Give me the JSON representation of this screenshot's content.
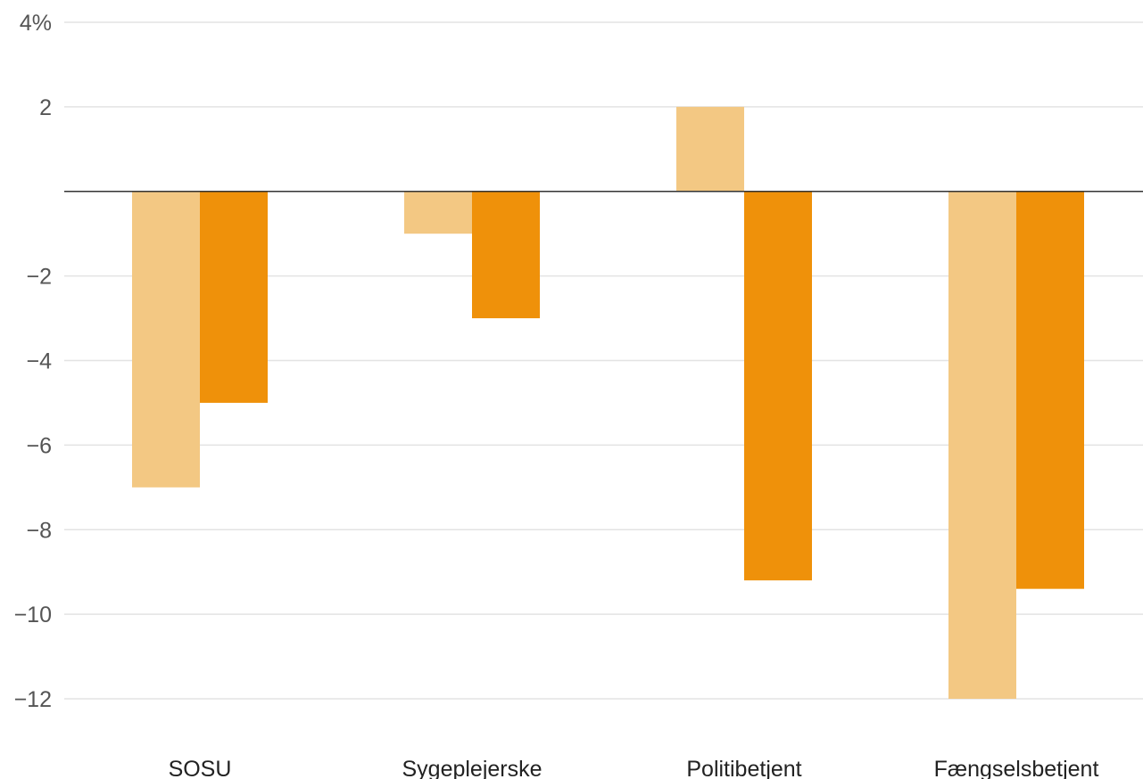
{
  "chart_data": {
    "type": "bar",
    "title": "",
    "xlabel": "",
    "ylabel": "",
    "categories": [
      "SOSU",
      "Sygeplejerske",
      "Politibetjent",
      "Fængselsbetjent"
    ],
    "series": [
      {
        "values": [
          -7,
          -1,
          2,
          -12
        ],
        "color": "#F3C883"
      },
      {
        "values": [
          -5,
          -3,
          -9.2,
          -9.4
        ],
        "color": "#EF910A"
      }
    ],
    "ylim": [
      -12,
      4
    ],
    "yticks": [
      4,
      2,
      0,
      -2,
      -4,
      -6,
      -8,
      -10,
      -12
    ],
    "ytick_labels": [
      "4%",
      "2",
      "",
      "−2",
      "−4",
      "−6",
      "−8",
      "−10",
      "−12"
    ],
    "grid": true,
    "legend": "none"
  }
}
